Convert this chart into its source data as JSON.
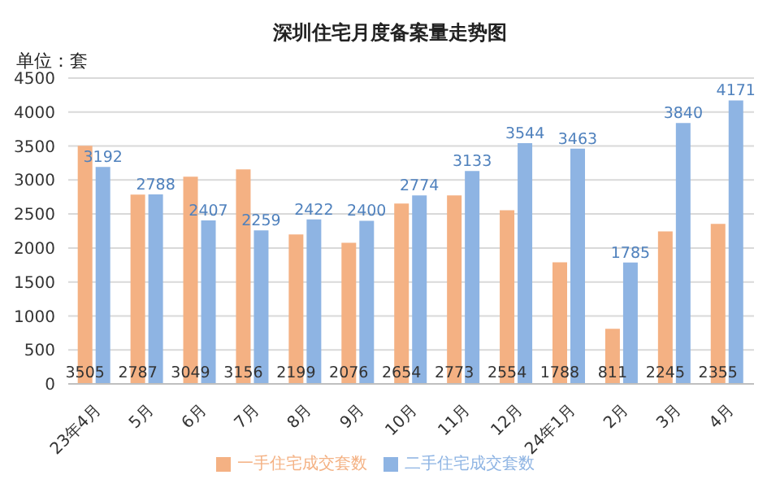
{
  "chart_data": {
    "type": "bar",
    "title": "深圳住宅月度备案量走势图",
    "annotations": [
      "单位：套"
    ],
    "categories": [
      "23年4月",
      "5月",
      "6月",
      "7月",
      "8月",
      "9月",
      "10月",
      "11月",
      "12月",
      "24年1月",
      "2月",
      "3月",
      "4月"
    ],
    "series": [
      {
        "name": "一手住宅成交套数",
        "color": "#f4b183",
        "values": [
          3505,
          2787,
          3049,
          3156,
          2199,
          2076,
          2654,
          2773,
          2554,
          1788,
          811,
          2245,
          2355
        ]
      },
      {
        "name": "二手住宅成交套数",
        "color": "#8eb4e3",
        "values": [
          3192,
          2788,
          2407,
          2259,
          2422,
          2400,
          2774,
          3133,
          3544,
          3463,
          1785,
          3840,
          4171
        ]
      }
    ],
    "ylim": [
      0,
      4500
    ],
    "yticks": [
      0,
      500,
      1000,
      1500,
      2000,
      2500,
      3000,
      3500,
      4000,
      4500
    ],
    "grid": "y",
    "legend": "bottom",
    "data_labels": true
  }
}
